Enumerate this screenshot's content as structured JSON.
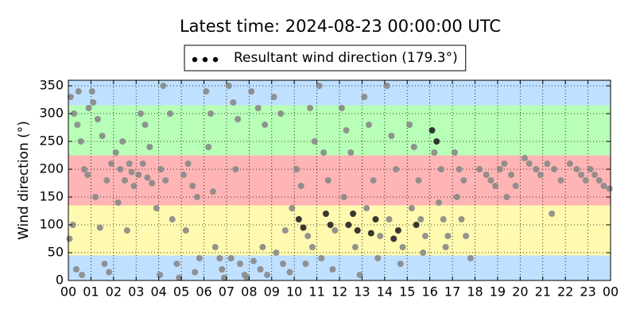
{
  "chart_data": {
    "type": "scatter",
    "title": "Latest time: 2024-08-23 00:00:00 UTC",
    "ylabel": "Wind direction (°)",
    "xlim": [
      0,
      24
    ],
    "ylim": [
      0,
      360
    ],
    "xticks": [
      {
        "value": 0,
        "label": "00"
      },
      {
        "value": 1,
        "label": "01"
      },
      {
        "value": 2,
        "label": "02"
      },
      {
        "value": 3,
        "label": "03"
      },
      {
        "value": 4,
        "label": "04"
      },
      {
        "value": 5,
        "label": "05"
      },
      {
        "value": 6,
        "label": "06"
      },
      {
        "value": 7,
        "label": "07"
      },
      {
        "value": 8,
        "label": "08"
      },
      {
        "value": 9,
        "label": "09"
      },
      {
        "value": 10,
        "label": "10"
      },
      {
        "value": 11,
        "label": "11"
      },
      {
        "value": 12,
        "label": "12"
      },
      {
        "value": 13,
        "label": "13"
      },
      {
        "value": 14,
        "label": "14"
      },
      {
        "value": 15,
        "label": "15"
      },
      {
        "value": 16,
        "label": "16"
      },
      {
        "value": 17,
        "label": "17"
      },
      {
        "value": 18,
        "label": "18"
      },
      {
        "value": 19,
        "label": "19"
      },
      {
        "value": 20,
        "label": "20"
      },
      {
        "value": 21,
        "label": "21"
      },
      {
        "value": 22,
        "label": "22"
      },
      {
        "value": 23,
        "label": "23"
      },
      {
        "value": 24,
        "label": "00"
      }
    ],
    "yticks": [
      0,
      50,
      100,
      150,
      200,
      250,
      300,
      350
    ],
    "grid": true,
    "legend": "upper center",
    "bands": [
      {
        "from": 0,
        "to": 45,
        "color": "#bfe0ff"
      },
      {
        "from": 45,
        "to": 135,
        "color": "#fffab0"
      },
      {
        "from": 135,
        "to": 225,
        "color": "#ffb5b5"
      },
      {
        "from": 225,
        "to": 315,
        "color": "#b8ffb8"
      },
      {
        "from": 315,
        "to": 360,
        "color": "#bfe0ff"
      }
    ],
    "series": [
      {
        "name": "Resultant wind direction (179.3°)",
        "color": "#000000",
        "x": [
          0.1,
          0.25,
          0.4,
          0.55,
          0.7,
          0.85,
          0.2,
          0.05,
          0.35,
          0.6,
          0.45,
          0.9,
          1.1,
          1.3,
          1.5,
          1.7,
          1.9,
          1.2,
          1.4,
          1.6,
          1.8,
          1.05,
          2.1,
          2.3,
          2.5,
          2.7,
          2.9,
          2.2,
          2.6,
          2.4,
          2.8,
          3.1,
          3.3,
          3.5,
          3.7,
          3.2,
          3.4,
          3.6,
          3.9,
          4.1,
          4.3,
          4.2,
          4.5,
          4.6,
          4.8,
          4.05,
          4.9,
          5.1,
          5.3,
          5.5,
          5.7,
          5.2,
          5.8,
          5.6,
          6.1,
          6.3,
          6.2,
          6.5,
          6.7,
          6.8,
          6.9,
          6.4,
          7.1,
          7.3,
          7.5,
          7.2,
          7.6,
          7.8,
          7.9,
          7.4,
          8.1,
          8.4,
          8.7,
          8.2,
          8.5,
          8.8,
          8.6,
          9.1,
          9.4,
          9.2,
          9.5,
          9.8,
          9.6,
          9.9,
          10.1,
          10.3,
          10.2,
          10.4,
          10.6,
          10.8,
          10.5,
          10.7,
          10.9,
          11.1,
          11.3,
          11.5,
          11.4,
          11.6,
          11.8,
          11.2,
          11.7,
          12.1,
          12.3,
          12.5,
          12.2,
          12.6,
          12.4,
          12.8,
          12.7,
          12.9,
          13.1,
          13.3,
          13.5,
          13.2,
          13.6,
          13.4,
          13.8,
          13.7,
          14.1,
          14.3,
          14.5,
          14.2,
          14.6,
          14.4,
          14.8,
          14.7,
          15.1,
          15.3,
          15.5,
          15.2,
          15.6,
          15.4,
          15.8,
          15.7,
          16.1,
          16.3,
          16.2,
          16.5,
          16.4,
          16.6,
          16.8,
          16.7,
          17.1,
          17.3,
          17.5,
          17.2,
          17.4,
          17.6,
          17.8,
          18.2,
          18.5,
          18.7,
          18.9,
          19.1,
          19.3,
          19.6,
          19.8,
          19.4,
          20.2,
          20.4,
          20.7,
          20.9,
          21.2,
          21.5,
          21.8,
          21.4,
          22.2,
          22.5,
          22.7,
          22.9,
          23.1,
          23.3,
          23.5,
          23.7,
          23.95
        ],
        "values": [
          330,
          300,
          280,
          250,
          200,
          190,
          100,
          75,
          20,
          10,
          340,
          310,
          320,
          290,
          260,
          180,
          210,
          150,
          95,
          30,
          15,
          340,
          230,
          200,
          180,
          210,
          170,
          140,
          90,
          250,
          195,
          190,
          210,
          185,
          175,
          300,
          280,
          240,
          130,
          200,
          180,
          350,
          300,
          110,
          30,
          10,
          5,
          190,
          210,
          170,
          150,
          90,
          40,
          15,
          340,
          300,
          240,
          60,
          40,
          20,
          5,
          160,
          350,
          320,
          290,
          40,
          30,
          10,
          5,
          200,
          340,
          310,
          280,
          35,
          20,
          10,
          60,
          330,
          300,
          50,
          30,
          15,
          90,
          130,
          200,
          170,
          110,
          95,
          80,
          60,
          30,
          310,
          250,
          350,
          230,
          180,
          120,
          100,
          90,
          40,
          20,
          310,
          270,
          230,
          150,
          120,
          100,
          90,
          60,
          10,
          330,
          280,
          180,
          130,
          110,
          85,
          80,
          40,
          350,
          260,
          200,
          110,
          90,
          75,
          60,
          30,
          280,
          240,
          180,
          130,
          110,
          100,
          80,
          50,
          270,
          250,
          230,
          200,
          140,
          110,
          80,
          60,
          230,
          200,
          180,
          150,
          110,
          80,
          40,
          200,
          190,
          180,
          170,
          200,
          210,
          190,
          170,
          150,
          220,
          210,
          200,
          190,
          210,
          200,
          180,
          120,
          210,
          200,
          190,
          180,
          200,
          190,
          180,
          170,
          165
        ],
        "colors": [
          "#888888",
          "#888888",
          "#888888",
          "#888888",
          "#888888",
          "#888888",
          "#888888",
          "#888888",
          "#888888",
          "#888888",
          "#888888",
          "#888888",
          "#888888",
          "#888888",
          "#888888",
          "#888888",
          "#888888",
          "#888888",
          "#888888",
          "#888888",
          "#888888",
          "#888888",
          "#888888",
          "#888888",
          "#888888",
          "#888888",
          "#888888",
          "#888888",
          "#888888",
          "#888888",
          "#888888",
          "#888888",
          "#888888",
          "#888888",
          "#888888",
          "#888888",
          "#888888",
          "#888888",
          "#888888",
          "#888888",
          "#888888",
          "#888888",
          "#888888",
          "#888888",
          "#888888",
          "#888888",
          "#888888",
          "#888888",
          "#888888",
          "#888888",
          "#888888",
          "#888888",
          "#888888",
          "#888888",
          "#888888",
          "#888888",
          "#888888",
          "#888888",
          "#888888",
          "#888888",
          "#888888",
          "#888888",
          "#888888",
          "#888888",
          "#888888",
          "#888888",
          "#888888",
          "#888888",
          "#888888",
          "#888888",
          "#888888",
          "#888888",
          "#888888",
          "#888888",
          "#888888",
          "#888888",
          "#888888",
          "#888888",
          "#888888",
          "#888888",
          "#888888",
          "#888888",
          "#888888",
          "#888888",
          "#888888",
          "#888888",
          "#222222",
          "#222222",
          "#888888",
          "#888888",
          "#888888",
          "#888888",
          "#888888",
          "#888888",
          "#888888",
          "#888888",
          "#222222",
          "#222222",
          "#888888",
          "#888888",
          "#888888",
          "#888888",
          "#888888",
          "#888888",
          "#888888",
          "#222222",
          "#222222",
          "#222222",
          "#888888",
          "#888888",
          "#888888",
          "#888888",
          "#888888",
          "#888888",
          "#222222",
          "#222222",
          "#888888",
          "#888888",
          "#888888",
          "#888888",
          "#888888",
          "#888888",
          "#222222",
          "#222222",
          "#888888",
          "#888888",
          "#888888",
          "#888888",
          "#888888",
          "#888888",
          "#888888",
          "#222222",
          "#888888",
          "#888888",
          "#222222",
          "#222222",
          "#888888",
          "#888888",
          "#888888",
          "#888888",
          "#888888",
          "#888888",
          "#888888",
          "#888888",
          "#888888",
          "#888888",
          "#888888",
          "#888888",
          "#888888",
          "#888888",
          "#888888",
          "#888888",
          "#888888",
          "#888888",
          "#888888",
          "#888888",
          "#888888",
          "#888888",
          "#888888",
          "#888888",
          "#888888",
          "#888888",
          "#888888",
          "#888888",
          "#888888",
          "#888888",
          "#888888",
          "#888888",
          "#888888",
          "#888888",
          "#888888",
          "#888888",
          "#888888",
          "#888888",
          "#888888"
        ]
      }
    ]
  }
}
